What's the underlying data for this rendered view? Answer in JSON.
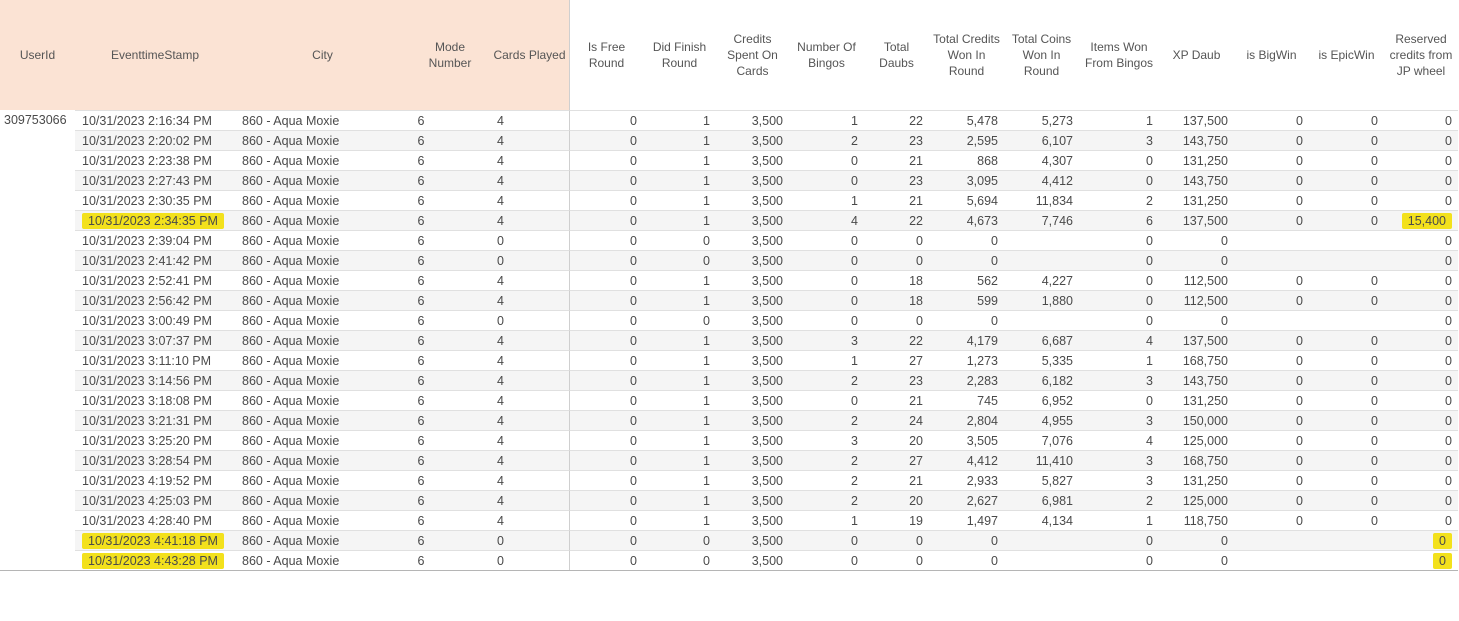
{
  "colors": {
    "header_bg": "#fbe3d4",
    "row_band": "#f5f5f5",
    "highlight": "#f3e11c"
  },
  "table": {
    "columns": [
      {
        "key": "userid",
        "label": "UserId",
        "align": "left",
        "group": "dimension"
      },
      {
        "key": "eventtimestamp",
        "label": "EventtimeStamp",
        "align": "left",
        "group": "dimension"
      },
      {
        "key": "city",
        "label": "City",
        "align": "left",
        "group": "dimension"
      },
      {
        "key": "mode-number",
        "label": "Mode Number",
        "align": "modecenter",
        "group": "dimension"
      },
      {
        "key": "cards-played",
        "label": "Cards Played",
        "align": "modecenter",
        "group": "dimension"
      },
      {
        "key": "is-free-round",
        "label": "Is Free Round",
        "align": "right",
        "group": "measure"
      },
      {
        "key": "did-finish-round",
        "label": "Did Finish Round",
        "align": "right",
        "group": "measure"
      },
      {
        "key": "credits-spent-on-cards",
        "label": "Credits Spent On Cards",
        "align": "right",
        "group": "measure"
      },
      {
        "key": "number-of-bingos",
        "label": "Number Of Bingos",
        "align": "right",
        "group": "measure"
      },
      {
        "key": "total-daubs",
        "label": "Total Daubs",
        "align": "right",
        "group": "measure"
      },
      {
        "key": "total-credits-won-in-round",
        "label": "Total Credits Won In Round",
        "align": "right",
        "group": "measure"
      },
      {
        "key": "total-coins-won-in-round",
        "label": "Total Coins Won In Round",
        "align": "right",
        "group": "measure"
      },
      {
        "key": "items-won-from-bingos",
        "label": "Items Won From Bingos",
        "align": "right",
        "group": "measure"
      },
      {
        "key": "xp-daub",
        "label": "XP Daub",
        "align": "right",
        "group": "measure"
      },
      {
        "key": "is-bigwin",
        "label": "is BigWin",
        "align": "right",
        "group": "measure"
      },
      {
        "key": "is-epicwin",
        "label": "is EpicWin",
        "align": "right",
        "group": "measure"
      },
      {
        "key": "reserved-credits-from-jp-wheel",
        "label": "Reserved credits from JP wheel",
        "align": "right",
        "group": "measure"
      }
    ],
    "rows": [
      {
        "cells": [
          "309753066",
          "10/31/2023 2:16:34 PM",
          "860 - Aqua Moxie",
          "6",
          "4",
          "0",
          "1",
          "3,500",
          "1",
          "22",
          "5,478",
          "5,273",
          "1",
          "137,500",
          "0",
          "0",
          "0"
        ],
        "highlights": []
      },
      {
        "cells": [
          "",
          "10/31/2023 2:20:02 PM",
          "860 - Aqua Moxie",
          "6",
          "4",
          "0",
          "1",
          "3,500",
          "2",
          "23",
          "2,595",
          "6,107",
          "3",
          "143,750",
          "0",
          "0",
          "0"
        ],
        "highlights": []
      },
      {
        "cells": [
          "",
          "10/31/2023 2:23:38 PM",
          "860 - Aqua Moxie",
          "6",
          "4",
          "0",
          "1",
          "3,500",
          "0",
          "21",
          "868",
          "4,307",
          "0",
          "131,250",
          "0",
          "0",
          "0"
        ],
        "highlights": []
      },
      {
        "cells": [
          "",
          "10/31/2023 2:27:43 PM",
          "860 - Aqua Moxie",
          "6",
          "4",
          "0",
          "1",
          "3,500",
          "0",
          "23",
          "3,095",
          "4,412",
          "0",
          "143,750",
          "0",
          "0",
          "0"
        ],
        "highlights": []
      },
      {
        "cells": [
          "",
          "10/31/2023 2:30:35 PM",
          "860 - Aqua Moxie",
          "6",
          "4",
          "0",
          "1",
          "3,500",
          "1",
          "21",
          "5,694",
          "11,834",
          "2",
          "131,250",
          "0",
          "0",
          "0"
        ],
        "highlights": []
      },
      {
        "cells": [
          "",
          "10/31/2023 2:34:35 PM",
          "860 - Aqua Moxie",
          "6",
          "4",
          "0",
          "1",
          "3,500",
          "4",
          "22",
          "4,673",
          "7,746",
          "6",
          "137,500",
          "0",
          "0",
          "15,400"
        ],
        "highlights": [
          1,
          16
        ]
      },
      {
        "cells": [
          "",
          "10/31/2023 2:39:04 PM",
          "860 - Aqua Moxie",
          "6",
          "0",
          "0",
          "0",
          "3,500",
          "0",
          "0",
          "0",
          "",
          "0",
          "0",
          "",
          "",
          "0"
        ],
        "highlights": []
      },
      {
        "cells": [
          "",
          "10/31/2023 2:41:42 PM",
          "860 - Aqua Moxie",
          "6",
          "0",
          "0",
          "0",
          "3,500",
          "0",
          "0",
          "0",
          "",
          "0",
          "0",
          "",
          "",
          "0"
        ],
        "highlights": []
      },
      {
        "cells": [
          "",
          "10/31/2023 2:52:41 PM",
          "860 - Aqua Moxie",
          "6",
          "4",
          "0",
          "1",
          "3,500",
          "0",
          "18",
          "562",
          "4,227",
          "0",
          "112,500",
          "0",
          "0",
          "0"
        ],
        "highlights": []
      },
      {
        "cells": [
          "",
          "10/31/2023 2:56:42 PM",
          "860 - Aqua Moxie",
          "6",
          "4",
          "0",
          "1",
          "3,500",
          "0",
          "18",
          "599",
          "1,880",
          "0",
          "112,500",
          "0",
          "0",
          "0"
        ],
        "highlights": []
      },
      {
        "cells": [
          "",
          "10/31/2023 3:00:49 PM",
          "860 - Aqua Moxie",
          "6",
          "0",
          "0",
          "0",
          "3,500",
          "0",
          "0",
          "0",
          "",
          "0",
          "0",
          "",
          "",
          "0"
        ],
        "highlights": []
      },
      {
        "cells": [
          "",
          "10/31/2023 3:07:37 PM",
          "860 - Aqua Moxie",
          "6",
          "4",
          "0",
          "1",
          "3,500",
          "3",
          "22",
          "4,179",
          "6,687",
          "4",
          "137,500",
          "0",
          "0",
          "0"
        ],
        "highlights": []
      },
      {
        "cells": [
          "",
          "10/31/2023 3:11:10 PM",
          "860 - Aqua Moxie",
          "6",
          "4",
          "0",
          "1",
          "3,500",
          "1",
          "27",
          "1,273",
          "5,335",
          "1",
          "168,750",
          "0",
          "0",
          "0"
        ],
        "highlights": []
      },
      {
        "cells": [
          "",
          "10/31/2023 3:14:56 PM",
          "860 - Aqua Moxie",
          "6",
          "4",
          "0",
          "1",
          "3,500",
          "2",
          "23",
          "2,283",
          "6,182",
          "3",
          "143,750",
          "0",
          "0",
          "0"
        ],
        "highlights": []
      },
      {
        "cells": [
          "",
          "10/31/2023 3:18:08 PM",
          "860 - Aqua Moxie",
          "6",
          "4",
          "0",
          "1",
          "3,500",
          "0",
          "21",
          "745",
          "6,952",
          "0",
          "131,250",
          "0",
          "0",
          "0"
        ],
        "highlights": []
      },
      {
        "cells": [
          "",
          "10/31/2023 3:21:31 PM",
          "860 - Aqua Moxie",
          "6",
          "4",
          "0",
          "1",
          "3,500",
          "2",
          "24",
          "2,804",
          "4,955",
          "3",
          "150,000",
          "0",
          "0",
          "0"
        ],
        "highlights": []
      },
      {
        "cells": [
          "",
          "10/31/2023 3:25:20 PM",
          "860 - Aqua Moxie",
          "6",
          "4",
          "0",
          "1",
          "3,500",
          "3",
          "20",
          "3,505",
          "7,076",
          "4",
          "125,000",
          "0",
          "0",
          "0"
        ],
        "highlights": []
      },
      {
        "cells": [
          "",
          "10/31/2023 3:28:54 PM",
          "860 - Aqua Moxie",
          "6",
          "4",
          "0",
          "1",
          "3,500",
          "2",
          "27",
          "4,412",
          "11,410",
          "3",
          "168,750",
          "0",
          "0",
          "0"
        ],
        "highlights": []
      },
      {
        "cells": [
          "",
          "10/31/2023 4:19:52 PM",
          "860 - Aqua Moxie",
          "6",
          "4",
          "0",
          "1",
          "3,500",
          "2",
          "21",
          "2,933",
          "5,827",
          "3",
          "131,250",
          "0",
          "0",
          "0"
        ],
        "highlights": []
      },
      {
        "cells": [
          "",
          "10/31/2023 4:25:03 PM",
          "860 - Aqua Moxie",
          "6",
          "4",
          "0",
          "1",
          "3,500",
          "2",
          "20",
          "2,627",
          "6,981",
          "2",
          "125,000",
          "0",
          "0",
          "0"
        ],
        "highlights": []
      },
      {
        "cells": [
          "",
          "10/31/2023 4:28:40 PM",
          "860 - Aqua Moxie",
          "6",
          "4",
          "0",
          "1",
          "3,500",
          "1",
          "19",
          "1,497",
          "4,134",
          "1",
          "118,750",
          "0",
          "0",
          "0"
        ],
        "highlights": []
      },
      {
        "cells": [
          "",
          "10/31/2023 4:41:18 PM",
          "860 - Aqua Moxie",
          "6",
          "0",
          "0",
          "0",
          "3,500",
          "0",
          "0",
          "0",
          "",
          "0",
          "0",
          "",
          "",
          "0"
        ],
        "highlights": [
          1,
          16
        ]
      },
      {
        "cells": [
          "",
          "10/31/2023 4:43:28 PM",
          "860 - Aqua Moxie",
          "6",
          "0",
          "0",
          "0",
          "3,500",
          "0",
          "0",
          "0",
          "",
          "0",
          "0",
          "",
          "",
          "0"
        ],
        "highlights": [
          1,
          16
        ]
      }
    ]
  }
}
